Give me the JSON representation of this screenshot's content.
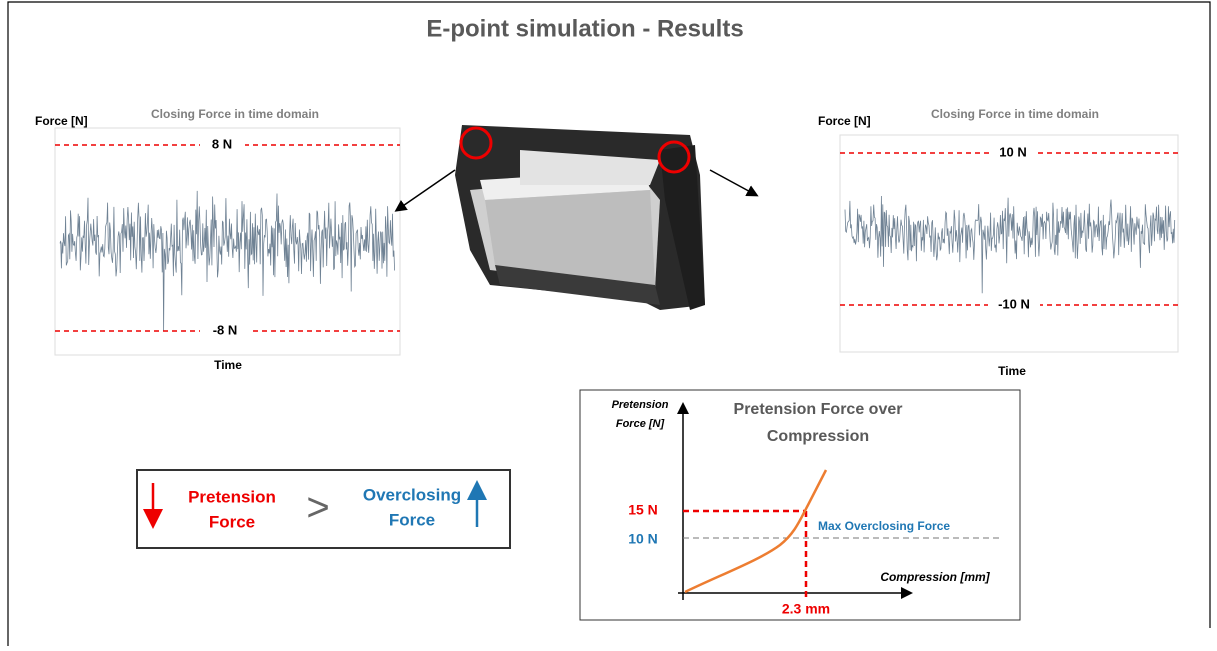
{
  "header": {
    "title": "E-point simulation - Results"
  },
  "left_plot": {
    "y_label": "Force [N]",
    "title": "Closing Force in time domain",
    "upper_label": "8 N",
    "lower_label": "-8 N",
    "x_label": "Time"
  },
  "right_plot": {
    "y_label": "Force [N]",
    "title": "Closing Force in time domain",
    "upper_label": "10 N",
    "lower_label": "-10 N",
    "x_label": "Time"
  },
  "inequality": {
    "left_line1": "Pretension",
    "left_line2": "Force",
    "sign": ">",
    "right_line1": "Overclosing",
    "right_line2": "Force"
  },
  "pretension_chart": {
    "y_label_line1": "Pretension",
    "y_label_line2": "Force [N]",
    "title_line1": "Pretension Force over",
    "title_line2": "Compression",
    "level_high": "15 N",
    "level_low": "10 N",
    "reference_label": "Max Overclosing Force",
    "x_label": "Compression [mm]",
    "x_marker": "2.3 mm"
  }
}
